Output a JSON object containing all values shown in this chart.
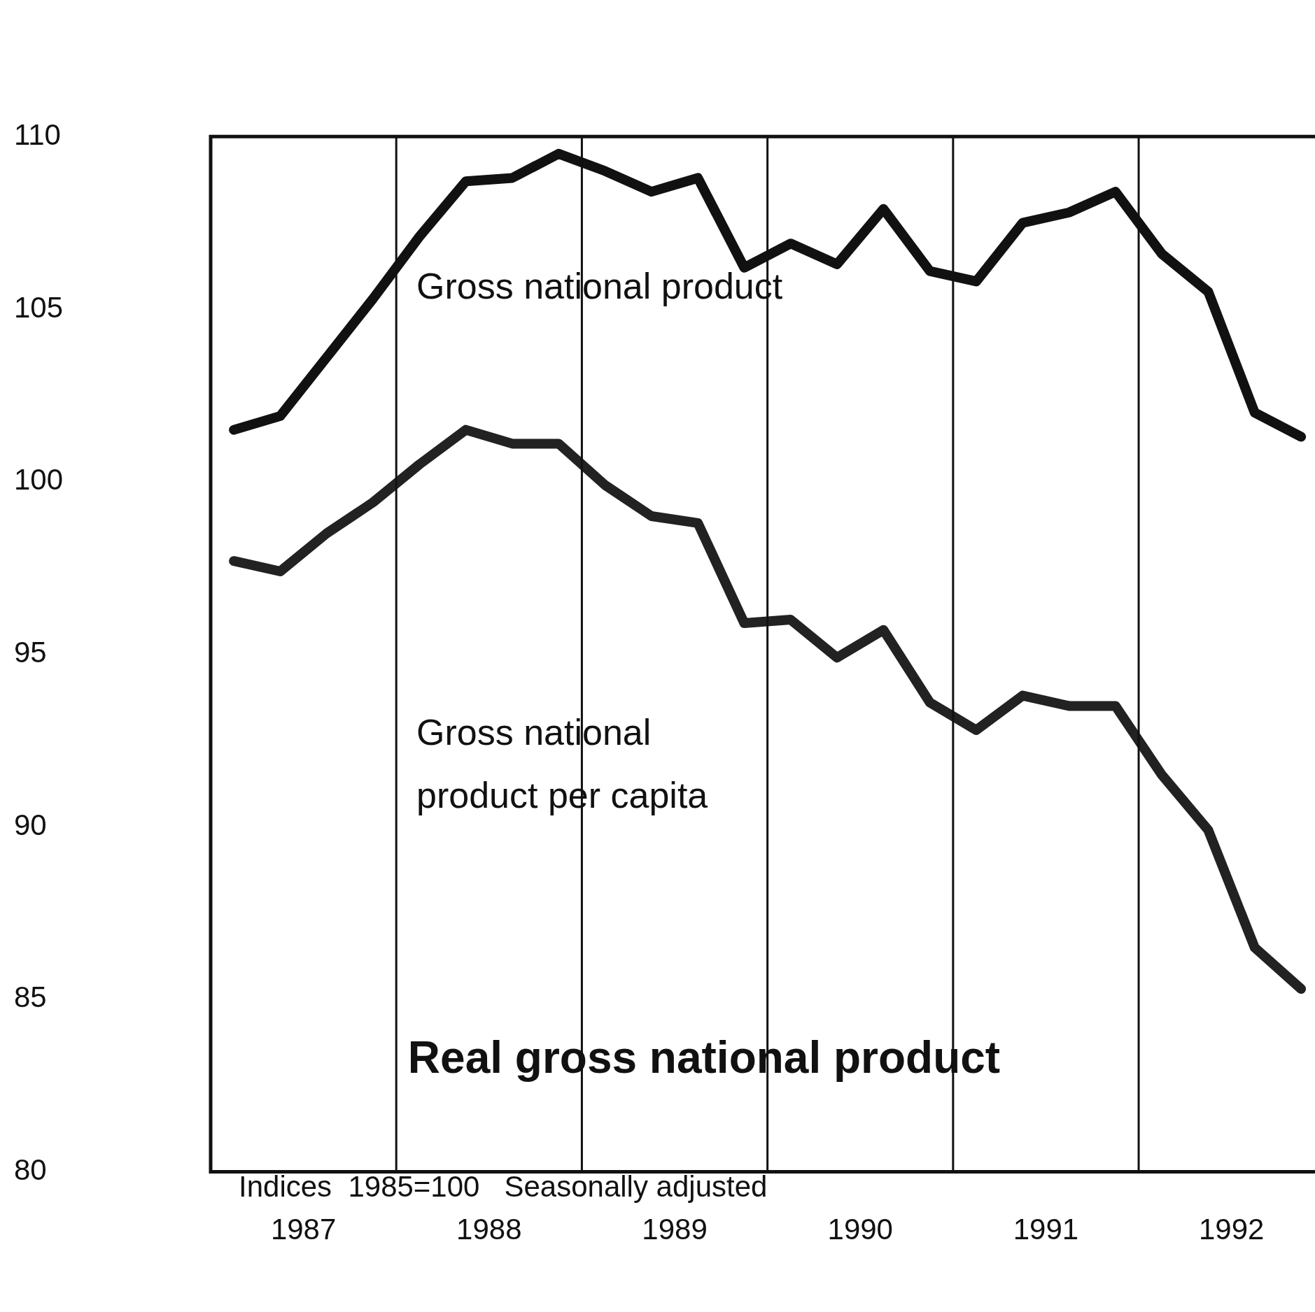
{
  "chart_data": {
    "type": "line",
    "title": "Real gross national product",
    "subtitle": "Indices  1985=100   Seasonally adjusted",
    "x": [
      1987.125,
      1987.375,
      1987.625,
      1987.875,
      1988.125,
      1988.375,
      1988.625,
      1988.875,
      1989.125,
      1989.375,
      1989.625,
      1989.875,
      1990.125,
      1990.375,
      1990.625,
      1990.875,
      1991.125,
      1991.375,
      1991.625,
      1991.875,
      1992.125,
      1992.375,
      1992.625,
      1992.875
    ],
    "series": [
      {
        "name": "Gross national product",
        "color": "#111111",
        "values": [
          101.5,
          101.9,
          103.6,
          105.3,
          107.1,
          108.7,
          108.8,
          109.5,
          109.0,
          108.4,
          108.8,
          106.2,
          106.9,
          106.3,
          107.9,
          106.1,
          105.8,
          107.5,
          107.8,
          108.4,
          106.6,
          105.5,
          102.0,
          101.3
        ]
      },
      {
        "name": "Gross national product per capita",
        "color": "#222222",
        "values": [
          97.7,
          97.4,
          98.5,
          99.4,
          100.5,
          101.5,
          101.1,
          101.1,
          99.9,
          99.0,
          98.8,
          95.9,
          96.0,
          94.9,
          95.7,
          93.6,
          92.8,
          93.8,
          93.5,
          93.5,
          91.5,
          89.9,
          86.5,
          85.3
        ]
      }
    ],
    "xlim": [
      1987,
      1992.95
    ],
    "xticks": [
      {
        "value": 1987.5,
        "label": "1987"
      },
      {
        "value": 1988.5,
        "label": "1988"
      },
      {
        "value": 1989.5,
        "label": "1989"
      },
      {
        "value": 1990.5,
        "label": "1990"
      },
      {
        "value": 1991.5,
        "label": "1991"
      },
      {
        "value": 1992.5,
        "label": "1992"
      }
    ],
    "ylim": [
      80,
      110
    ],
    "yticks": [
      80,
      85,
      90,
      95,
      100,
      105,
      110
    ],
    "ref_lines": [
      {
        "axis": "x",
        "value": 1988,
        "color": "#111111"
      },
      {
        "axis": "x",
        "value": 1989,
        "color": "#111111"
      },
      {
        "axis": "x",
        "value": 1990,
        "color": "#111111"
      },
      {
        "axis": "x",
        "value": 1991,
        "color": "#111111"
      },
      {
        "axis": "x",
        "value": 1992,
        "color": "#111111"
      }
    ],
    "grid": false,
    "legend": false
  }
}
